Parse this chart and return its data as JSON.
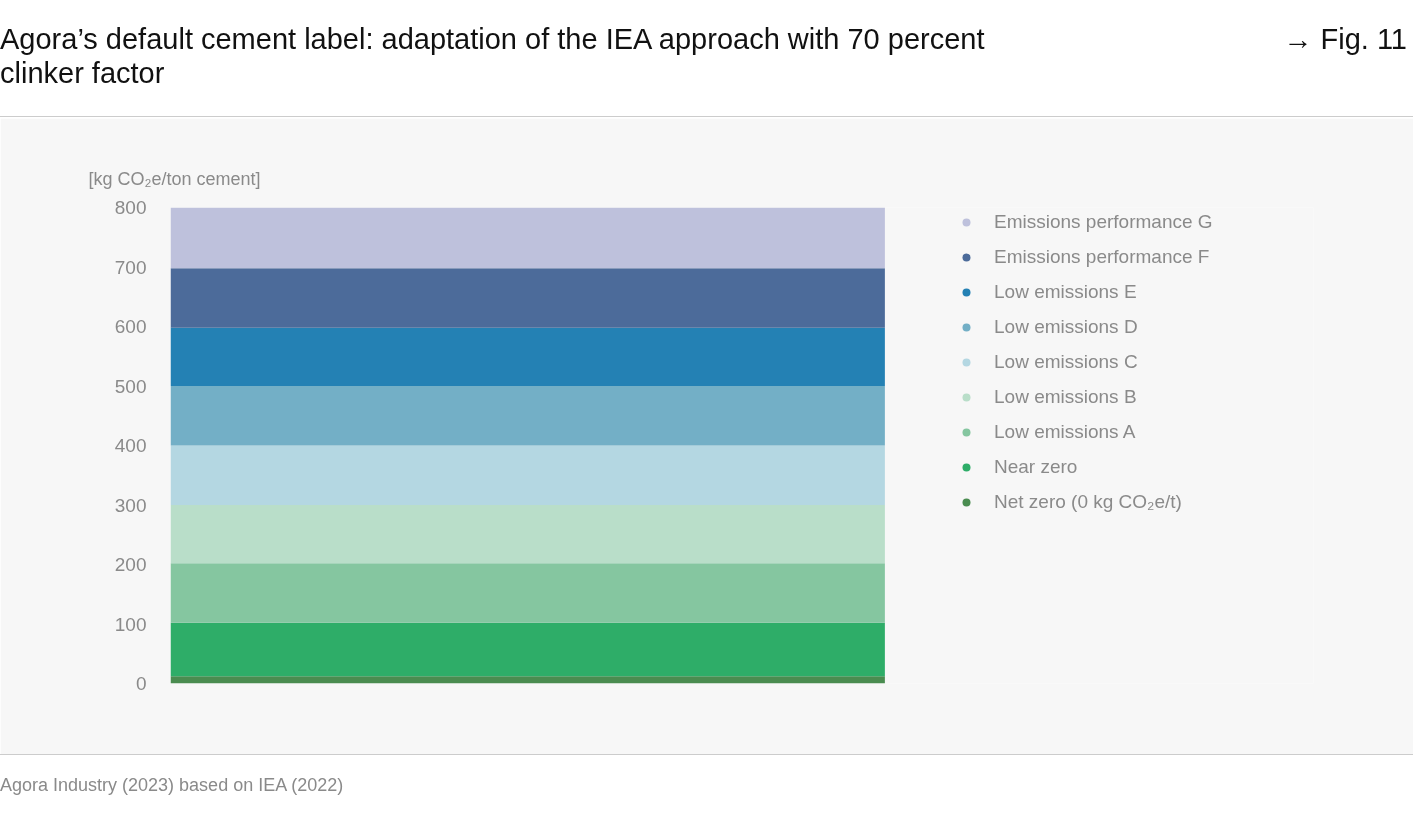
{
  "chart_data": {
    "type": "bar",
    "stacked": true,
    "title": "Agora’s default cement label: adaptation of the IEA approach with 70 percent clinker factor",
    "ylabel": "[kg CO₂e/ton cement]",
    "categories": [
      null
    ],
    "ylim": [
      0,
      800
    ],
    "yticks": [
      0,
      100,
      200,
      300,
      400,
      500,
      600,
      700,
      800
    ],
    "grid": false,
    "legend": "right",
    "marker": "circle",
    "annotations": [
      "→ Fig. 11",
      "Agora Industry (2023) based on IEA (2022)"
    ],
    "series": [
      {
        "name": "Net zero (0 kg CO₂e/t)",
        "color": "#4a8c50",
        "values": [
          12
        ]
      },
      {
        "name": "Near zero",
        "color": "#2ead68",
        "values": [
          90
        ]
      },
      {
        "name": "Low emissions A",
        "color": "#85c6a0",
        "values": [
          100
        ]
      },
      {
        "name": "Low emissions B",
        "color": "#b9dec9",
        "values": [
          98
        ]
      },
      {
        "name": "Low emissions C",
        "color": "#b4d7e2",
        "values": [
          100
        ]
      },
      {
        "name": "Low emissions D",
        "color": "#73afc6",
        "values": [
          100
        ]
      },
      {
        "name": "Low emissions E",
        "color": "#2481b4",
        "values": [
          98
        ]
      },
      {
        "name": "Emissions performance F",
        "color": "#4c6b9a",
        "values": [
          100
        ]
      },
      {
        "name": "Emissions performance G",
        "color": "#bec1dc",
        "values": [
          102
        ]
      }
    ]
  }
}
